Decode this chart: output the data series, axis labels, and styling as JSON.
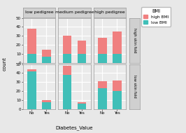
{
  "col_labels": [
    "low pedigree",
    "medium pedigree",
    "high pedigree"
  ],
  "row_labels": [
    "high skin fold",
    "low skin fold"
  ],
  "x_labels": [
    "No",
    "Yes"
  ],
  "xlabel": "Diabetes_Value",
  "ylabel": "count",
  "ylim": [
    0,
    50
  ],
  "yticks": [
    0,
    10,
    20,
    30,
    40,
    50
  ],
  "color_high": "#F08080",
  "color_low": "#40BFB8",
  "legend_title": "BMI",
  "legend_labels": [
    "high BMI",
    "low BMI"
  ],
  "bg_color": "#EBEBEB",
  "strip_bg": "#D0D0D0",
  "outer_bg": "#E0E0E0",
  "data": {
    "high skin fold": {
      "low pedigree": {
        "No": {
          "high": 28,
          "low": 10
        },
        "Yes": {
          "high": 8,
          "low": 7
        }
      },
      "medium pedigree": {
        "No": {
          "high": 20,
          "low": 10
        },
        "Yes": {
          "high": 15,
          "low": 10
        }
      },
      "high pedigree": {
        "No": {
          "high": 18,
          "low": 10
        },
        "Yes": {
          "high": 25,
          "low": 10
        }
      }
    },
    "low skin fold": {
      "low pedigree": {
        "No": {
          "high": 2,
          "low": 42
        },
        "Yes": {
          "high": 2,
          "low": 8
        }
      },
      "medium pedigree": {
        "No": {
          "high": 10,
          "low": 38
        },
        "Yes": {
          "high": 2,
          "low": 6
        }
      },
      "high pedigree": {
        "No": {
          "high": 8,
          "low": 23
        },
        "Yes": {
          "high": 12,
          "low": 20
        }
      }
    }
  }
}
